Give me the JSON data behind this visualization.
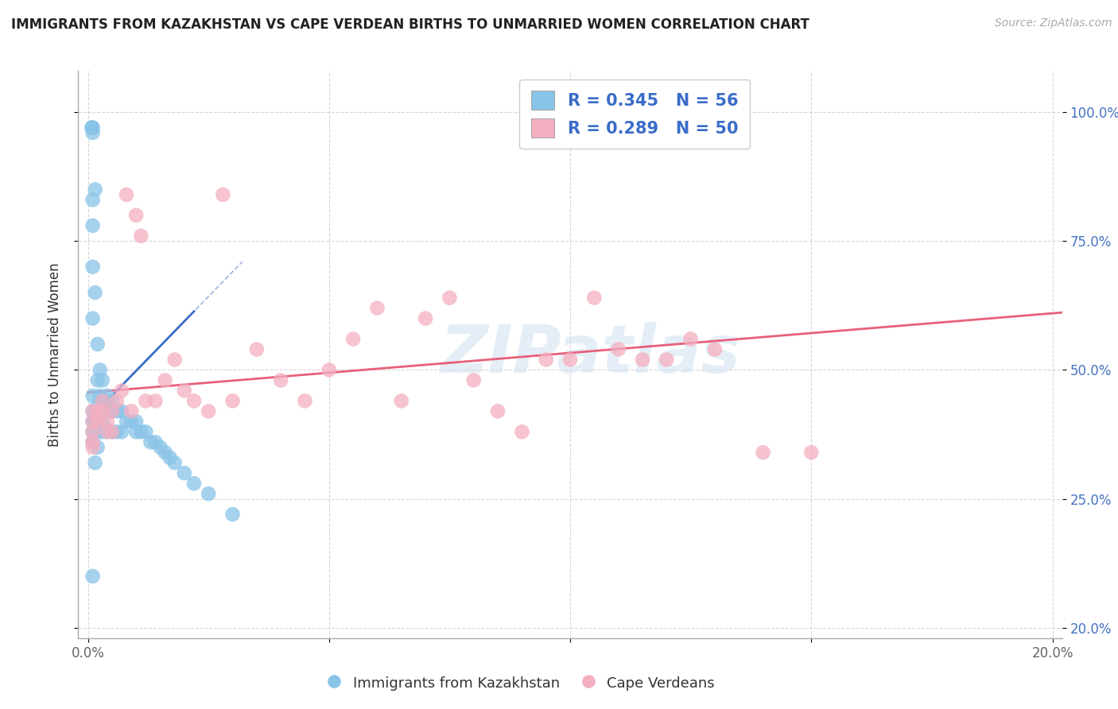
{
  "title": "IMMIGRANTS FROM KAZAKHSTAN VS CAPE VERDEAN BIRTHS TO UNMARRIED WOMEN CORRELATION CHART",
  "source": "Source: ZipAtlas.com",
  "ylabel": "Births to Unmarried Women",
  "blue_color": "#89c4e8",
  "pink_color": "#f4afc0",
  "blue_line_color": "#3a6cc8",
  "pink_line_color": "#e8607a",
  "blue_R": 0.345,
  "blue_N": 56,
  "pink_R": 0.289,
  "pink_N": 50,
  "legend_label_blue": "Immigrants from Kazakhstan",
  "legend_label_pink": "Cape Verdeans",
  "RN_color": "#3a6cc8",
  "right_ytick_labels": [
    "100.0%",
    "75.0%",
    "50.0%",
    "25.0%",
    "20.0%"
  ],
  "left_ytick_labels": [
    "",
    "",
    "",
    "",
    ""
  ],
  "xtick_labels": [
    "0.0%",
    "",
    "",
    "",
    "20.0%"
  ],
  "watermark_text": "ZIPatlas",
  "blue_x": [
    0.0008,
    0.0009,
    0.001,
    0.001,
    0.001,
    0.001,
    0.001,
    0.001,
    0.001,
    0.001,
    0.001,
    0.001,
    0.001,
    0.0015,
    0.0015,
    0.0015,
    0.002,
    0.002,
    0.002,
    0.002,
    0.002,
    0.002,
    0.0025,
    0.0025,
    0.003,
    0.003,
    0.003,
    0.003,
    0.003,
    0.004,
    0.004,
    0.004,
    0.005,
    0.005,
    0.005,
    0.006,
    0.006,
    0.007,
    0.007,
    0.008,
    0.009,
    0.01,
    0.01,
    0.011,
    0.012,
    0.013,
    0.014,
    0.015,
    0.016,
    0.017,
    0.018,
    0.02,
    0.022,
    0.025,
    0.03,
    0.001
  ],
  "blue_y": [
    0.97,
    0.97,
    0.97,
    0.96,
    0.83,
    0.78,
    0.7,
    0.6,
    0.45,
    0.42,
    0.4,
    0.38,
    0.36,
    0.85,
    0.65,
    0.32,
    0.55,
    0.48,
    0.43,
    0.4,
    0.38,
    0.35,
    0.5,
    0.45,
    0.48,
    0.44,
    0.42,
    0.4,
    0.38,
    0.45,
    0.42,
    0.38,
    0.44,
    0.42,
    0.38,
    0.42,
    0.38,
    0.42,
    0.38,
    0.4,
    0.4,
    0.4,
    0.38,
    0.38,
    0.38,
    0.36,
    0.36,
    0.35,
    0.34,
    0.33,
    0.32,
    0.3,
    0.28,
    0.26,
    0.22,
    0.1
  ],
  "pink_x": [
    0.001,
    0.001,
    0.001,
    0.001,
    0.001,
    0.002,
    0.002,
    0.003,
    0.003,
    0.004,
    0.004,
    0.005,
    0.005,
    0.006,
    0.007,
    0.008,
    0.009,
    0.01,
    0.011,
    0.012,
    0.014,
    0.016,
    0.018,
    0.02,
    0.022,
    0.025,
    0.028,
    0.03,
    0.035,
    0.04,
    0.045,
    0.05,
    0.055,
    0.06,
    0.065,
    0.07,
    0.075,
    0.08,
    0.085,
    0.09,
    0.095,
    0.1,
    0.105,
    0.11,
    0.115,
    0.12,
    0.125,
    0.13,
    0.14,
    0.15
  ],
  "pink_y": [
    0.42,
    0.4,
    0.38,
    0.36,
    0.35,
    0.42,
    0.4,
    0.44,
    0.42,
    0.4,
    0.38,
    0.42,
    0.38,
    0.44,
    0.46,
    0.84,
    0.42,
    0.8,
    0.76,
    0.44,
    0.44,
    0.48,
    0.52,
    0.46,
    0.44,
    0.42,
    0.84,
    0.44,
    0.54,
    0.48,
    0.44,
    0.5,
    0.56,
    0.62,
    0.44,
    0.6,
    0.64,
    0.48,
    0.42,
    0.38,
    0.52,
    0.52,
    0.64,
    0.54,
    0.52,
    0.52,
    0.56,
    0.54,
    0.34,
    0.34
  ]
}
